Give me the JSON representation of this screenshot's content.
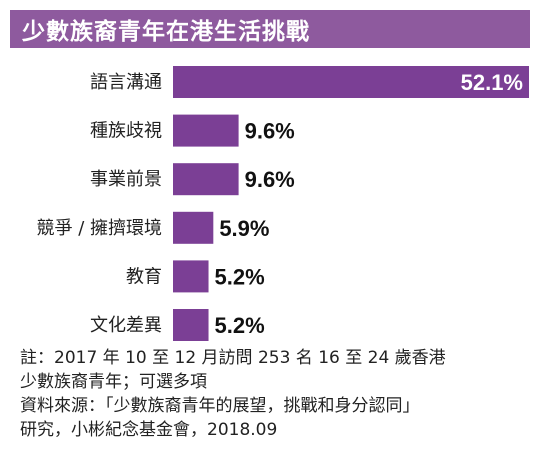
{
  "title": "少數族裔青年在港生活挑戰",
  "colors": {
    "title_bg": "#8e5a9e",
    "bar": "#7b3f95",
    "inside_label": "#ffffff",
    "outside_label": "#111111",
    "category_text": "#222222"
  },
  "chart_data": {
    "type": "bar",
    "orientation": "horizontal",
    "categories": [
      "語言溝通",
      "種族歧視",
      "事業前景",
      "競爭 / 擁擠環境",
      "教育",
      "文化差異"
    ],
    "values": [
      52.1,
      9.6,
      9.6,
      5.9,
      5.2,
      5.2
    ],
    "value_labels": [
      "52.1%",
      "9.6%",
      "9.6%",
      "5.9%",
      "5.2%",
      "5.2%"
    ],
    "unit": "%",
    "xlim": [
      0,
      52.1
    ],
    "grid": false,
    "legend": "none"
  },
  "notes": [
    "註：2017 年 10 至 12 月訪問 253 名 16 至 24 歲香港",
    "少數族裔青年；可選多項",
    "資料來源：「少數族裔青年的展望，挑戰和身分認同」",
    "研究，小彬紀念基金會，2018.09"
  ]
}
